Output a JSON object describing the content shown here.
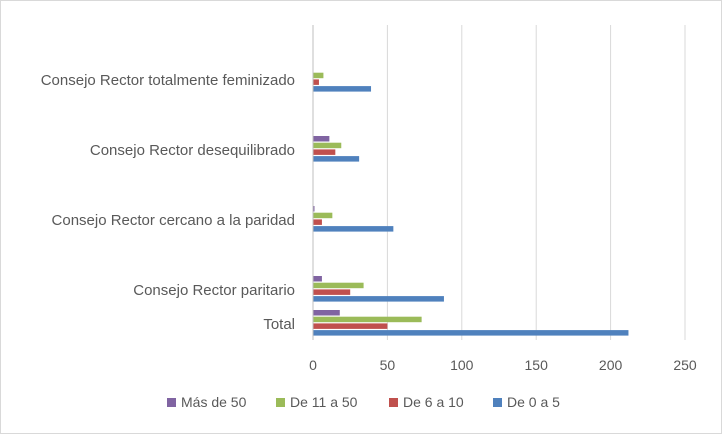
{
  "chart_data": {
    "type": "bar",
    "orientation": "horizontal",
    "title": "",
    "xlabel": "",
    "ylabel": "",
    "xlim": [
      0,
      250
    ],
    "ticks": [
      0,
      50,
      100,
      150,
      200,
      250
    ],
    "grid": true,
    "legend_position": "bottom",
    "categories": [
      "Consejo Rector totalmente feminizado",
      "Consejo Rector desequilibrado",
      "Consejo Rector cercano a la paridad",
      "Consejo Rector paritario",
      "Total"
    ],
    "series": [
      {
        "name": "Más de 50",
        "color": "#8064A2",
        "values": [
          0,
          11,
          1,
          6,
          18
        ]
      },
      {
        "name": "De 11 a 50",
        "color": "#9BBB59",
        "values": [
          7,
          19,
          13,
          34,
          73
        ]
      },
      {
        "name": "De 6 a 10",
        "color": "#C0504D",
        "values": [
          4,
          15,
          6,
          25,
          50
        ]
      },
      {
        "name": "De 0 a 5",
        "color": "#4F81BD",
        "values": [
          39,
          31,
          54,
          88,
          212
        ]
      }
    ],
    "legend_order": [
      "Más de 50",
      "De 11 a 50",
      "De 6 a 10",
      "De 0 a 5"
    ]
  }
}
